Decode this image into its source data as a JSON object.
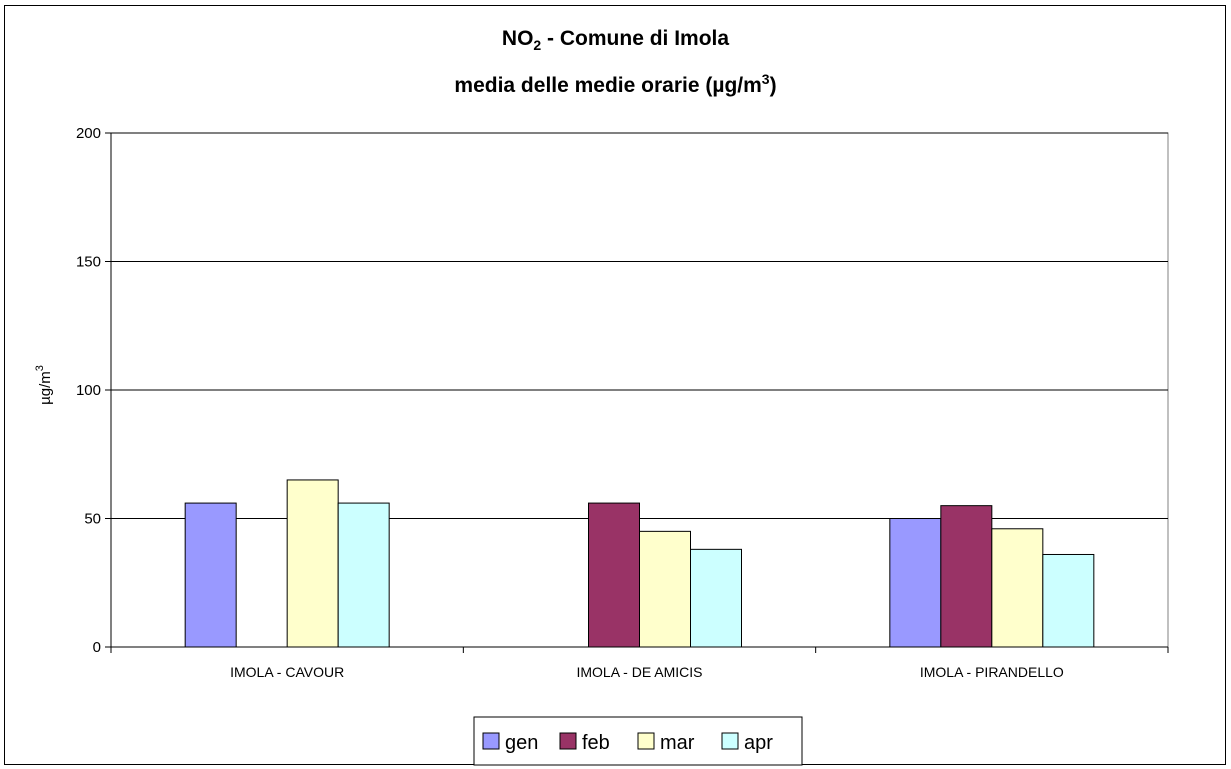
{
  "chart_data": {
    "type": "bar",
    "title_parts": {
      "main": "NO",
      "main_sub": "2",
      "main_rest": " - Comune di Imola",
      "line2": "media delle medie orarie (µg/m",
      "line2_sup": "3",
      "line2_rest": ")"
    },
    "ylabel": "µg/m",
    "ylabel_sup": "3",
    "xlabel": "",
    "ylim": [
      0,
      200
    ],
    "yticks": [
      0,
      50,
      100,
      150,
      200
    ],
    "grid": true,
    "legend_position": "bottom",
    "categories": [
      "IMOLA - CAVOUR",
      "IMOLA - DE AMICIS",
      "IMOLA - PIRANDELLO"
    ],
    "series": [
      {
        "name": "gen",
        "color": "#9999ff",
        "values": [
          56,
          null,
          50
        ]
      },
      {
        "name": "feb",
        "color": "#993366",
        "values": [
          null,
          56,
          55
        ]
      },
      {
        "name": "mar",
        "color": "#ffffcc",
        "values": [
          65,
          45,
          46
        ]
      },
      {
        "name": "apr",
        "color": "#ccffff",
        "values": [
          56,
          38,
          36
        ]
      }
    ]
  }
}
